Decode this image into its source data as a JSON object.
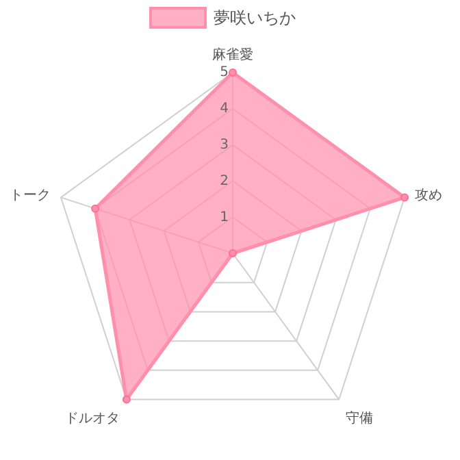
{
  "chart_data": {
    "type": "radar",
    "categories": [
      "麻雀愛",
      "攻め",
      "守備",
      "ドルオタ",
      "トーク"
    ],
    "series": [
      {
        "name": "夢咲いちか",
        "color": "#ff8fab",
        "values": [
          5,
          5,
          0,
          5,
          4
        ]
      }
    ],
    "ylim": [
      0,
      5
    ],
    "yticks": [
      1,
      2,
      3,
      4,
      5
    ],
    "grid": true,
    "legend": "top",
    "marker": "circle"
  }
}
